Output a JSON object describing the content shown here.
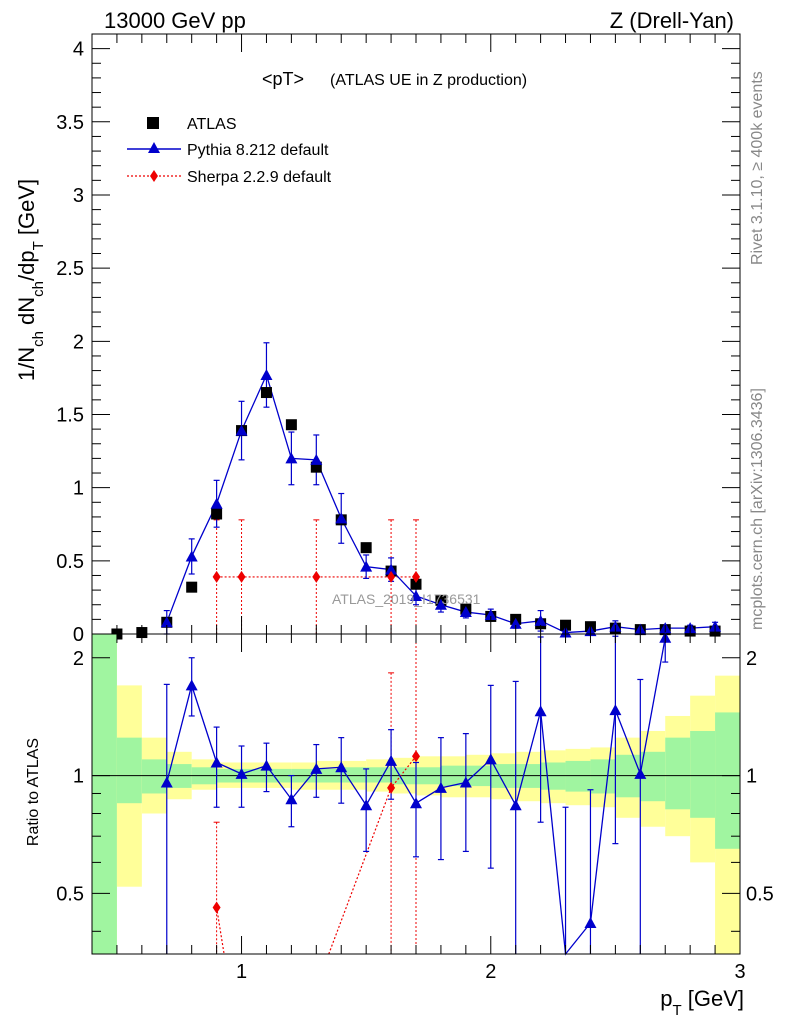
{
  "header": {
    "left": "13000 GeV pp",
    "right": "Z (Drell-Yan)"
  },
  "side_labels": {
    "top": "Rivet 3.1.10, ≥ 400k events",
    "bottom": "mcplots.cern.ch [arXiv:1306.3436]"
  },
  "colors": {
    "atlas": "#000000",
    "pythia": "#0000cc",
    "sherpa": "#ee0000",
    "band_green": "#a0f5a0",
    "band_yellow": "#ffff99"
  },
  "chart_data": [
    {
      "type": "scatter",
      "panel": "main",
      "title": "<pT> (ATLAS UE in Z production)",
      "title_main": "<pT>",
      "title_sub": "(ATLAS UE in Z production)",
      "watermark": "ATLAS_2019_I1736531",
      "xlabel": "p_T [GeV]",
      "ylabel": "1/N_ch dN_ch/dp_T [GeV]",
      "xlim": [
        0.4,
        3.0
      ],
      "ylim": [
        0,
        4.1
      ],
      "xticks": [
        "1",
        "2",
        "3"
      ],
      "yticks": [
        "0",
        "0.5",
        "1",
        "1.5",
        "2",
        "2.5",
        "3",
        "3.5",
        "4"
      ],
      "legend_position": "top-left",
      "series": [
        {
          "name": "ATLAS",
          "marker": "square",
          "x": [
            0.5,
            0.6,
            0.7,
            0.8,
            0.9,
            1.0,
            1.1,
            1.2,
            1.3,
            1.4,
            1.5,
            1.6,
            1.7,
            1.8,
            1.9,
            2.0,
            2.1,
            2.2,
            2.3,
            2.4,
            2.5,
            2.6,
            2.7,
            2.8,
            2.9
          ],
          "y": [
            0.0,
            0.01,
            0.08,
            0.32,
            0.82,
            1.39,
            1.65,
            1.43,
            1.14,
            0.78,
            0.59,
            0.43,
            0.34,
            0.23,
            0.17,
            0.12,
            0.1,
            0.07,
            0.06,
            0.05,
            0.04,
            0.03,
            0.03,
            0.02,
            0.02
          ]
        },
        {
          "name": "Pythia 8.212 default",
          "marker": "triangle",
          "x": [
            0.7,
            0.8,
            0.9,
            1.0,
            1.1,
            1.2,
            1.3,
            1.4,
            1.5,
            1.6,
            1.7,
            1.8,
            1.9,
            2.0,
            2.1,
            2.2,
            2.3,
            2.4,
            2.5,
            2.6,
            2.7,
            2.8,
            2.9
          ],
          "y": [
            0.08,
            0.53,
            0.89,
            1.39,
            1.77,
            1.2,
            1.19,
            0.79,
            0.46,
            0.44,
            0.26,
            0.2,
            0.15,
            0.13,
            0.07,
            0.09,
            0.01,
            0.02,
            0.05,
            0.03,
            0.04,
            0.04,
            0.05
          ],
          "err": [
            0.08,
            0.12,
            0.16,
            0.2,
            0.22,
            0.18,
            0.17,
            0.17,
            0.08,
            0.08,
            0.06,
            0.05,
            0.04,
            0.04,
            0.03,
            0.07,
            0.02,
            0.02,
            0.04,
            0.02,
            0.02,
            0.02,
            0.03
          ]
        },
        {
          "name": "Sherpa 2.2.9 default",
          "marker": "diamond",
          "x": [
            0.9,
            1.0,
            1.3,
            1.6,
            1.7
          ],
          "y": [
            0.39,
            0.39,
            0.39,
            0.39,
            0.39
          ],
          "err": [
            0.39,
            0.39,
            0.39,
            0.39,
            0.39
          ]
        }
      ]
    },
    {
      "type": "scatter",
      "panel": "ratio",
      "ylabel": "Ratio to ATLAS",
      "xlabel": "p_T [GeV]",
      "xlim": [
        0.4,
        3.0
      ],
      "ylim": [
        0.35,
        2.3
      ],
      "yticks": [
        "0.5",
        "1",
        "2"
      ],
      "xticks": [
        "1",
        "2",
        "3"
      ],
      "bands": [
        {
          "x0": 0.4,
          "x1": 0.5,
          "g": [
            0.0,
            3.0
          ],
          "y": [
            0.0,
            3.0
          ]
        },
        {
          "x0": 0.5,
          "x1": 0.6,
          "g": [
            0.85,
            1.25
          ],
          "y": [
            0.52,
            1.7
          ]
        },
        {
          "x0": 0.6,
          "x1": 0.7,
          "g": [
            0.9,
            1.1
          ],
          "y": [
            0.8,
            1.25
          ]
        },
        {
          "x0": 0.7,
          "x1": 0.8,
          "g": [
            0.93,
            1.07
          ],
          "y": [
            0.87,
            1.15
          ]
        },
        {
          "x0": 0.8,
          "x1": 0.9,
          "g": [
            0.95,
            1.05
          ],
          "y": [
            0.92,
            1.1
          ]
        },
        {
          "x0": 0.9,
          "x1": 1.0,
          "g": [
            0.96,
            1.04
          ],
          "y": [
            0.93,
            1.08
          ]
        },
        {
          "x0": 1.0,
          "x1": 1.1,
          "g": [
            0.96,
            1.04
          ],
          "y": [
            0.93,
            1.08
          ]
        },
        {
          "x0": 1.1,
          "x1": 1.2,
          "g": [
            0.96,
            1.04
          ],
          "y": [
            0.93,
            1.08
          ]
        },
        {
          "x0": 1.2,
          "x1": 1.3,
          "g": [
            0.96,
            1.04
          ],
          "y": [
            0.92,
            1.08
          ]
        },
        {
          "x0": 1.3,
          "x1": 1.4,
          "g": [
            0.96,
            1.04
          ],
          "y": [
            0.92,
            1.09
          ]
        },
        {
          "x0": 1.4,
          "x1": 1.5,
          "g": [
            0.96,
            1.05
          ],
          "y": [
            0.92,
            1.09
          ]
        },
        {
          "x0": 1.5,
          "x1": 1.6,
          "g": [
            0.96,
            1.05
          ],
          "y": [
            0.91,
            1.1
          ]
        },
        {
          "x0": 1.6,
          "x1": 1.7,
          "g": [
            0.95,
            1.05
          ],
          "y": [
            0.9,
            1.11
          ]
        },
        {
          "x0": 1.7,
          "x1": 1.8,
          "g": [
            0.95,
            1.05
          ],
          "y": [
            0.89,
            1.12
          ]
        },
        {
          "x0": 1.8,
          "x1": 1.9,
          "g": [
            0.94,
            1.06
          ],
          "y": [
            0.88,
            1.12
          ]
        },
        {
          "x0": 1.9,
          "x1": 2.0,
          "g": [
            0.94,
            1.06
          ],
          "y": [
            0.88,
            1.13
          ]
        },
        {
          "x0": 2.0,
          "x1": 2.1,
          "g": [
            0.93,
            1.07
          ],
          "y": [
            0.87,
            1.14
          ]
        },
        {
          "x0": 2.1,
          "x1": 2.2,
          "g": [
            0.93,
            1.07
          ],
          "y": [
            0.86,
            1.15
          ]
        },
        {
          "x0": 2.2,
          "x1": 2.3,
          "g": [
            0.92,
            1.08
          ],
          "y": [
            0.85,
            1.16
          ]
        },
        {
          "x0": 2.3,
          "x1": 2.4,
          "g": [
            0.91,
            1.09
          ],
          "y": [
            0.84,
            1.17
          ]
        },
        {
          "x0": 2.4,
          "x1": 2.5,
          "g": [
            0.9,
            1.1
          ],
          "y": [
            0.83,
            1.18
          ]
        },
        {
          "x0": 2.5,
          "x1": 2.6,
          "g": [
            0.88,
            1.13
          ],
          "y": [
            0.78,
            1.25
          ]
        },
        {
          "x0": 2.6,
          "x1": 2.7,
          "g": [
            0.86,
            1.15
          ],
          "y": [
            0.74,
            1.3
          ]
        },
        {
          "x0": 2.7,
          "x1": 2.8,
          "g": [
            0.82,
            1.25
          ],
          "y": [
            0.7,
            1.42
          ]
        },
        {
          "x0": 2.8,
          "x1": 2.9,
          "g": [
            0.78,
            1.3
          ],
          "y": [
            0.6,
            1.6
          ]
        },
        {
          "x0": 2.9,
          "x1": 3.0,
          "g": [
            0.65,
            1.45
          ],
          "y": [
            0.0,
            1.8
          ]
        }
      ],
      "series": [
        {
          "name": "Pythia 8.212 default",
          "marker": "triangle",
          "x": [
            0.7,
            0.8,
            0.9,
            1.0,
            1.1,
            1.2,
            1.3,
            1.4,
            1.5,
            1.6,
            1.7,
            1.8,
            1.9,
            2.0,
            2.1,
            2.2,
            2.3,
            2.4,
            2.5,
            2.6,
            2.7
          ],
          "y": [
            0.96,
            1.7,
            1.08,
            1.01,
            1.06,
            0.87,
            1.04,
            1.05,
            0.84,
            1.09,
            0.85,
            0.93,
            0.96,
            1.1,
            0.84,
            1.46,
            0.33,
            0.42,
            1.47,
            1.01,
            2.25
          ],
          "err_lo": [
            0.75,
            0.28,
            0.25,
            0.18,
            0.15,
            0.13,
            0.16,
            0.2,
            0.2,
            0.22,
            0.23,
            0.32,
            0.32,
            0.52,
            0.9,
            0.7,
            0.5,
            0.5,
            0.8,
            0.75,
            0.3
          ],
          "err_hi": [
            0.75,
            0.3,
            0.25,
            0.18,
            0.15,
            0.13,
            0.16,
            0.2,
            0.2,
            0.22,
            0.23,
            0.32,
            0.32,
            0.6,
            0.9,
            0.8,
            0.5,
            0.5,
            0.8,
            0.75,
            0.3
          ]
        },
        {
          "name": "Sherpa 2.2.9 default",
          "marker": "diamond",
          "x": [
            0.9,
            1.6,
            1.7
          ],
          "y": [
            0.46,
            0.93,
            1.12
          ],
          "err_lo": [
            0.3,
            0.8,
            0.8
          ],
          "err_hi": [
            0.3,
            0.9,
            1.2
          ]
        }
      ]
    }
  ]
}
